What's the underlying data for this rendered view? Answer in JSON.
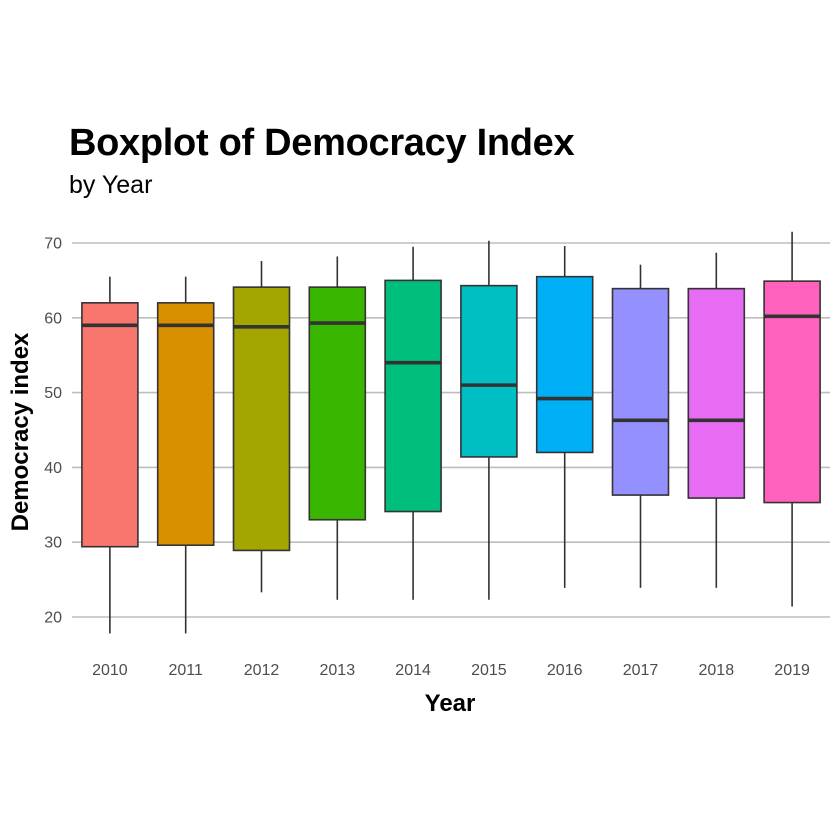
{
  "chart_data": {
    "type": "boxplot",
    "title": "Boxplot of Democracy Index",
    "subtitle": "by Year",
    "xlabel": "Year",
    "ylabel": "Democracy index",
    "ylim": [
      15.5,
      74
    ],
    "yticks": [
      20,
      30,
      40,
      50,
      60,
      70
    ],
    "grid": "horizontal major",
    "legend": "none",
    "categories": [
      "2010",
      "2011",
      "2012",
      "2013",
      "2014",
      "2015",
      "2016",
      "2017",
      "2018",
      "2019"
    ],
    "boxes": [
      {
        "year": "2010",
        "min": 17.8,
        "q1": 29.4,
        "median": 59.0,
        "q3": 62.0,
        "max": 65.5,
        "color": "#F8766D"
      },
      {
        "year": "2011",
        "min": 17.8,
        "q1": 29.6,
        "median": 59.0,
        "q3": 62.0,
        "max": 65.5,
        "color": "#D89000"
      },
      {
        "year": "2012",
        "min": 23.3,
        "q1": 28.9,
        "median": 58.8,
        "q3": 64.1,
        "max": 67.6,
        "color": "#A3A500"
      },
      {
        "year": "2013",
        "min": 22.3,
        "q1": 33.0,
        "median": 59.3,
        "q3": 64.1,
        "max": 68.2,
        "color": "#39B600"
      },
      {
        "year": "2014",
        "min": 22.3,
        "q1": 34.1,
        "median": 54.0,
        "q3": 65.0,
        "max": 69.5,
        "color": "#00BF7D"
      },
      {
        "year": "2015",
        "min": 22.3,
        "q1": 41.4,
        "median": 51.0,
        "q3": 64.3,
        "max": 70.3,
        "color": "#00BFC4"
      },
      {
        "year": "2016",
        "min": 23.9,
        "q1": 42.0,
        "median": 49.2,
        "q3": 65.5,
        "max": 69.6,
        "color": "#00B0F6"
      },
      {
        "year": "2017",
        "min": 23.9,
        "q1": 36.3,
        "median": 46.3,
        "q3": 63.9,
        "max": 67.1,
        "color": "#9590FF"
      },
      {
        "year": "2018",
        "min": 23.9,
        "q1": 35.9,
        "median": 46.3,
        "q3": 63.9,
        "max": 68.7,
        "color": "#E76BF3"
      },
      {
        "year": "2019",
        "min": 21.4,
        "q1": 35.3,
        "median": 60.2,
        "q3": 64.9,
        "max": 71.5,
        "color": "#FF62BC"
      }
    ]
  }
}
